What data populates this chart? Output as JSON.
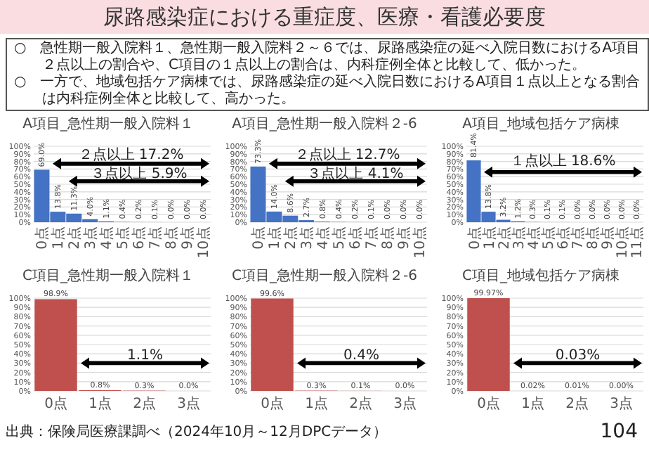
{
  "chart_data": [
    {
      "type": "other",
      "title": "尿路感染症における重症度、医療・看護必要度",
      "annotations": [
        "○　急性期一般入院料１、急性期一般入院料２～６では、尿路感染症の延べ入院日数におけるA項目２点以上の割合や、C項目の１点以上の割合は、内科症例全体と比較して、低かった。",
        "○　一方で、地域包括ケア病棟では、尿路感染症の延べ入院日数におけるA項目１点以上となる割合は内科症例全体と比較して、高かった。"
      ]
    },
    {
      "type": "bar",
      "title": "A項目_急性期一般入院料１",
      "categories": [
        "0点",
        "1点",
        "2点",
        "3点",
        "4点",
        "5点",
        "6点",
        "7点",
        "8点",
        "9点",
        "10点"
      ],
      "values": [
        69.0,
        13.8,
        11.3,
        4.0,
        1.1,
        0.4,
        0.2,
        0.1,
        0.0,
        0.0,
        0.0
      ],
      "value_labels": [
        "69.0%",
        "13.8%",
        "11.3%",
        "4.0%",
        "1.1%",
        "0.4%",
        "0.2%",
        "0.1%",
        "0.0%",
        "0.0%",
        "0.0%"
      ],
      "color": "#4472c4",
      "ylim": [
        0,
        100
      ],
      "yticks": [
        {
          "value": 0,
          "label": "0%"
        },
        {
          "value": 10,
          "label": "10%"
        },
        {
          "value": 20,
          "label": "20%"
        },
        {
          "value": 30,
          "label": "30%"
        },
        {
          "value": 40,
          "label": "40%"
        },
        {
          "value": 50,
          "label": "50%"
        },
        {
          "value": 60,
          "label": "60%"
        },
        {
          "value": 70,
          "label": "70%"
        },
        {
          "value": 80,
          "label": "80%"
        },
        {
          "value": 90,
          "label": "90%"
        },
        {
          "value": 100,
          "label": "100%"
        }
      ],
      "grid": "y",
      "annotations": [
        "２点以上 17.2%",
        "３点以上 5.9%"
      ]
    },
    {
      "type": "bar",
      "title": "A項目_急性期一般入院料２-6",
      "categories": [
        "0点",
        "1点",
        "2点",
        "3点",
        "4点",
        "5点",
        "6点",
        "7点",
        "8点",
        "9点",
        "10点"
      ],
      "values": [
        73.3,
        14.0,
        8.6,
        2.7,
        0.8,
        0.4,
        0.2,
        0.1,
        0.0,
        0.0,
        0.0
      ],
      "value_labels": [
        "73.3%",
        "14.0%",
        "8.6%",
        "2.7%",
        "0.8%",
        "0.4%",
        "0.2%",
        "0.1%",
        "0.0%",
        "0.0%",
        "0.0%"
      ],
      "color": "#4472c4",
      "ylim": [
        0,
        100
      ],
      "yticks": [
        {
          "value": 0,
          "label": "0%"
        },
        {
          "value": 10,
          "label": "10%"
        },
        {
          "value": 20,
          "label": "20%"
        },
        {
          "value": 30,
          "label": "30%"
        },
        {
          "value": 40,
          "label": "40%"
        },
        {
          "value": 50,
          "label": "50%"
        },
        {
          "value": 60,
          "label": "60%"
        },
        {
          "value": 70,
          "label": "70%"
        },
        {
          "value": 80,
          "label": "80%"
        },
        {
          "value": 90,
          "label": "90%"
        },
        {
          "value": 100,
          "label": "100%"
        }
      ],
      "grid": "y",
      "annotations": [
        "２点以上 12.7%",
        "３点以上 4.1%"
      ]
    },
    {
      "type": "bar",
      "title": "A項目_地域包括ケア病棟",
      "categories": [
        "0点",
        "1点",
        "2点",
        "3点",
        "4点",
        "5点",
        "6点",
        "7点",
        "8点",
        "9点",
        "10点",
        "11点"
      ],
      "values": [
        81.4,
        13.8,
        3.2,
        1.2,
        0.3,
        0.1,
        0.1,
        0.0,
        0.0,
        0.0,
        0.0,
        0.0
      ],
      "value_labels": [
        "81.4%",
        "13.8%",
        "3.2%",
        "1.2%",
        "0.3%",
        "0.1%",
        "0.1%",
        "0.0%",
        "0.0%",
        "0.0%",
        "0.0%",
        "0.0%"
      ],
      "color": "#4472c4",
      "ylim": [
        0,
        100
      ],
      "yticks": [
        {
          "value": 0,
          "label": "0%"
        },
        {
          "value": 10,
          "label": "10%"
        },
        {
          "value": 20,
          "label": "20%"
        },
        {
          "value": 30,
          "label": "30%"
        },
        {
          "value": 40,
          "label": "40%"
        },
        {
          "value": 50,
          "label": "50%"
        },
        {
          "value": 60,
          "label": "60%"
        },
        {
          "value": 70,
          "label": "70%"
        },
        {
          "value": 80,
          "label": "80%"
        },
        {
          "value": 90,
          "label": "90%"
        },
        {
          "value": 100,
          "label": "100%"
        }
      ],
      "grid": "y",
      "annotations": [
        "１点以上 18.6%"
      ]
    },
    {
      "type": "bar",
      "title": "C項目_急性期一般入院料１",
      "categories": [
        "0点",
        "1点",
        "2点",
        "3点"
      ],
      "values": [
        98.9,
        0.8,
        0.3,
        0.0
      ],
      "value_labels": [
        "98.9%",
        "0.8%",
        "0.3%",
        "0.0%"
      ],
      "color": "#c0504d",
      "ylim": [
        0,
        100
      ],
      "yticks": [
        {
          "value": 0,
          "label": "0%"
        },
        {
          "value": 10,
          "label": "10%"
        },
        {
          "value": 20,
          "label": "20%"
        },
        {
          "value": 30,
          "label": "30%"
        },
        {
          "value": 40,
          "label": "40%"
        },
        {
          "value": 50,
          "label": "50%"
        },
        {
          "value": 60,
          "label": "60%"
        },
        {
          "value": 70,
          "label": "70%"
        },
        {
          "value": 80,
          "label": "80%"
        },
        {
          "value": 90,
          "label": "90%"
        },
        {
          "value": 100,
          "label": "100%"
        }
      ],
      "grid": "y",
      "annotations": [
        "1.1%"
      ]
    },
    {
      "type": "bar",
      "title": "C項目_急性期一般入院料２-6",
      "categories": [
        "0点",
        "1点",
        "2点",
        "3点"
      ],
      "values": [
        99.6,
        0.3,
        0.1,
        0.0
      ],
      "value_labels": [
        "99.6%",
        "0.3%",
        "0.1%",
        "0.0%"
      ],
      "color": "#c0504d",
      "ylim": [
        0,
        100
      ],
      "yticks": [
        {
          "value": 0,
          "label": "0%"
        },
        {
          "value": 10,
          "label": "10%"
        },
        {
          "value": 20,
          "label": "20%"
        },
        {
          "value": 30,
          "label": "30%"
        },
        {
          "value": 40,
          "label": "40%"
        },
        {
          "value": 50,
          "label": "50%"
        },
        {
          "value": 60,
          "label": "60%"
        },
        {
          "value": 70,
          "label": "70%"
        },
        {
          "value": 80,
          "label": "80%"
        },
        {
          "value": 90,
          "label": "90%"
        },
        {
          "value": 100,
          "label": "100%"
        }
      ],
      "grid": "y",
      "annotations": [
        "0.4%"
      ]
    },
    {
      "type": "bar",
      "title": "C項目_地域包括ケア病棟",
      "categories": [
        "0点",
        "1点",
        "2点",
        "3点"
      ],
      "values": [
        99.97,
        0.02,
        0.01,
        0.0
      ],
      "value_labels": [
        "99.97%",
        "0.02%",
        "0.01%",
        "0.00%"
      ],
      "color": "#c0504d",
      "ylim": [
        0,
        100
      ],
      "yticks": [
        {
          "value": 0,
          "label": "0%"
        },
        {
          "value": 10,
          "label": "10%"
        },
        {
          "value": 20,
          "label": "20%"
        },
        {
          "value": 30,
          "label": "30%"
        },
        {
          "value": 40,
          "label": "40%"
        },
        {
          "value": 50,
          "label": "50%"
        },
        {
          "value": 60,
          "label": "60%"
        },
        {
          "value": 70,
          "label": "70%"
        },
        {
          "value": 80,
          "label": "80%"
        },
        {
          "value": 90,
          "label": "90%"
        },
        {
          "value": 100,
          "label": "100%"
        }
      ],
      "grid": "y",
      "annotations": [
        "0.03%"
      ]
    },
    {
      "type": "other",
      "annotations": [
        "出典：保険局医療課調べ（2024年10月～12月DPCデータ）",
        "104"
      ]
    }
  ]
}
